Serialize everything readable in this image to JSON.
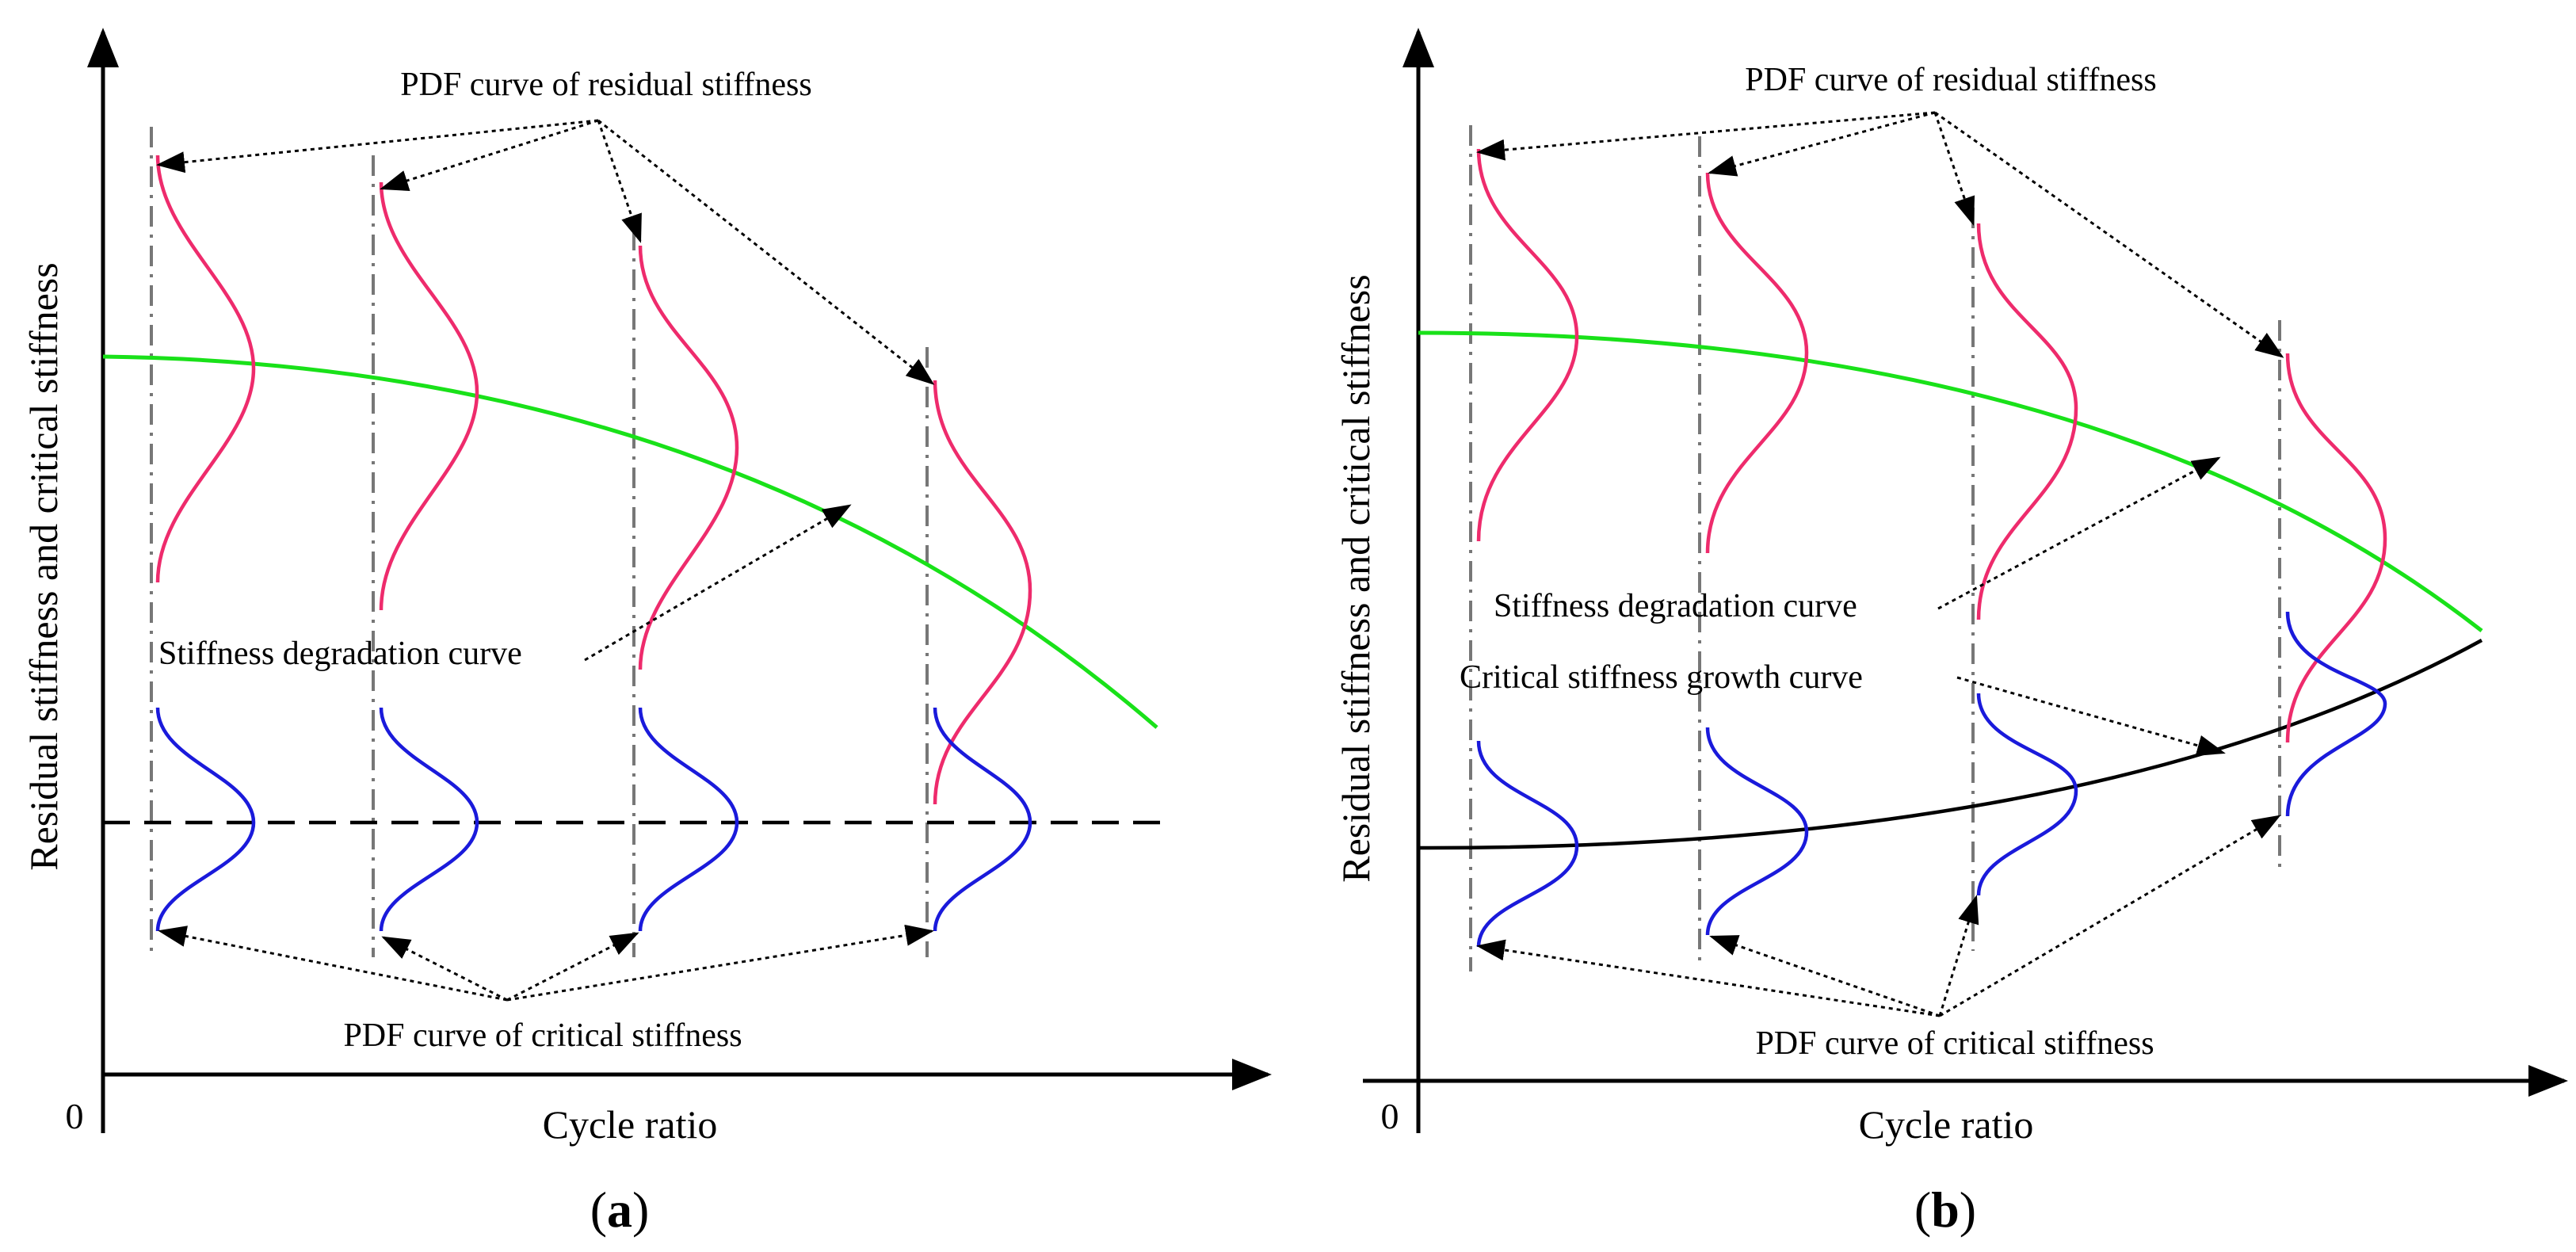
{
  "panel_a": {
    "letter": "a",
    "y_axis_label": "Residual stiffness and critical stiffness",
    "x_axis_label": "Cycle ratio",
    "origin_label": "0",
    "annotations": {
      "pdf_residual": "PDF curve of residual stiffness",
      "degradation": "Stiffness degradation curve",
      "pdf_critical": "PDF curve of critical stiffness"
    }
  },
  "panel_b": {
    "letter": "b",
    "y_axis_label": "Residual stiffness and critical stiffness",
    "x_axis_label": "Cycle ratio",
    "origin_label": "0",
    "annotations": {
      "pdf_residual": "PDF curve of residual stiffness",
      "degradation": "Stiffness degradation curve",
      "growth": "Critical stiffness growth curve",
      "pdf_critical": "PDF curve of critical stiffness"
    }
  },
  "colors": {
    "residual_pdf": "#ee2b6c",
    "critical_pdf": "#1a1adb",
    "degradation_curve": "#19e119",
    "critical_curve": "#000000"
  }
}
